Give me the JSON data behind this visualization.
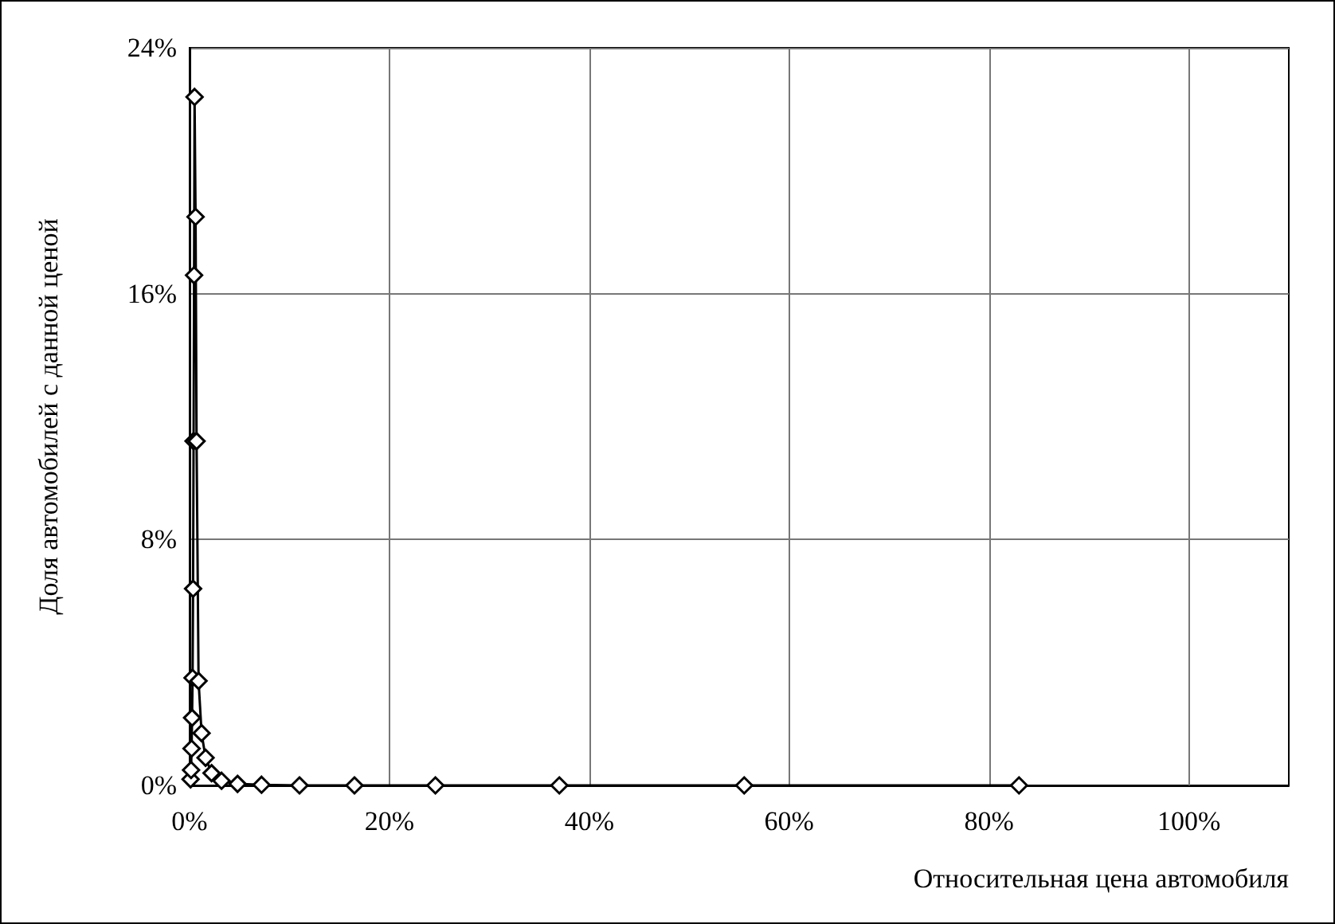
{
  "chart_data": {
    "type": "line",
    "xlabel": "Относительная цена автомобиля",
    "ylabel": "Доля автомобилей с данной ценой",
    "x": [
      0.1,
      0.15,
      0.2,
      0.25,
      0.3,
      0.35,
      0.4,
      0.45,
      0.5,
      0.6,
      0.7,
      0.9,
      1.2,
      1.6,
      2.2,
      3.2,
      4.8,
      7.2,
      11,
      16.5,
      24.6,
      37,
      55.5,
      83
    ],
    "series": [
      {
        "color": "#000000",
        "values": [
          0.2,
          0.5,
          1.2,
          2.2,
          3.5,
          6.4,
          11.2,
          16.6,
          22.4,
          18.5,
          11.2,
          3.4,
          1.7,
          0.9,
          0.4,
          0.15,
          0.05,
          0.02,
          0,
          0,
          0,
          0,
          0,
          0
        ]
      }
    ],
    "xlim": [
      0,
      110
    ],
    "xticks": [
      {
        "value": 0,
        "label": "0%"
      },
      {
        "value": 20,
        "label": "20%"
      },
      {
        "value": 40,
        "label": "40%"
      },
      {
        "value": 60,
        "label": "60%"
      },
      {
        "value": 80,
        "label": "80%"
      },
      {
        "value": 100,
        "label": "100%"
      }
    ],
    "ylim": [
      0,
      24
    ],
    "yticks": [
      {
        "value": 0,
        "label": "0%"
      },
      {
        "value": 8,
        "label": "8%"
      },
      {
        "value": 16,
        "label": "16%"
      },
      {
        "value": 24,
        "label": "24%"
      }
    ],
    "grid": true,
    "marker": "diamond",
    "line_style": "solid"
  }
}
